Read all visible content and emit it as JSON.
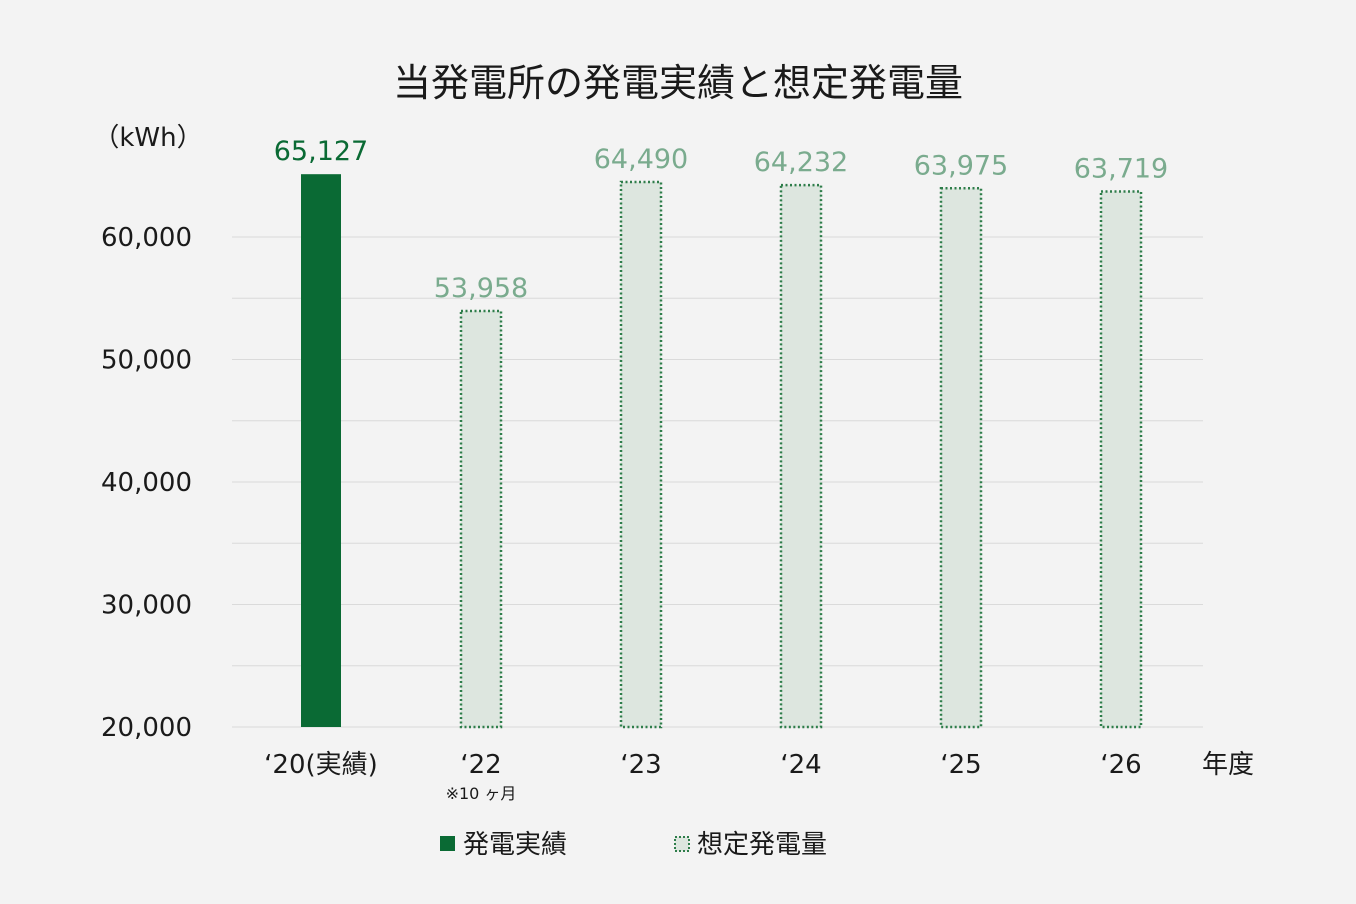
{
  "chart_data": {
    "type": "bar",
    "title": "当発電所の発電実績と想定発電量",
    "ylabel": "（kWh）",
    "xlabel": "年度",
    "ylim": [
      20000,
      66000
    ],
    "yticks": [
      "20,000",
      "30,000",
      "40,000",
      "50,000",
      "60,000"
    ],
    "ytick_values": [
      20000,
      30000,
      40000,
      50000,
      60000
    ],
    "grid": true,
    "categories": [
      "‘20(実績)",
      "‘22",
      "‘23",
      "‘24",
      "‘25",
      "‘26"
    ],
    "category_notes": [
      "",
      "※10 ヶ月",
      "",
      "",
      "",
      ""
    ],
    "values": [
      65127,
      53958,
      64490,
      64232,
      63975,
      63719
    ],
    "data_labels": [
      "65,127",
      "53,958",
      "64,490",
      "64,232",
      "63,975",
      "63,719"
    ],
    "bar_kinds": [
      "actual",
      "projected",
      "projected",
      "projected",
      "projected",
      "projected"
    ],
    "series": [
      {
        "name": "発電実績",
        "kind": "actual",
        "color": "#0a6a34"
      },
      {
        "name": "想定発電量",
        "kind": "projected",
        "color": "#2e7d4a",
        "fill": "#dde6df"
      }
    ],
    "legend_position": "bottom"
  }
}
